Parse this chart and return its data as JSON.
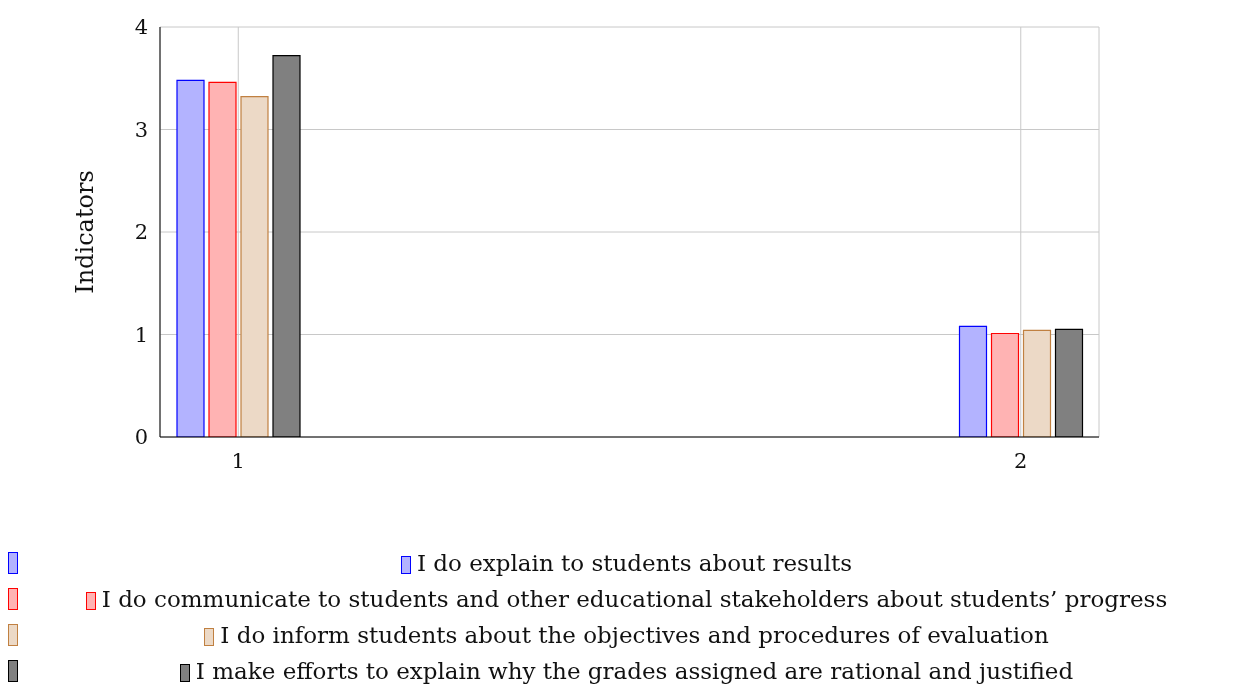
{
  "chart_data": {
    "type": "bar",
    "ylabel": "Indicators",
    "x": [
      1,
      2
    ],
    "xlim": [
      0.9,
      2.1
    ],
    "xticks": [
      1,
      2
    ],
    "ylim": [
      0,
      4
    ],
    "yticks": [
      0,
      1,
      2,
      3,
      4
    ],
    "grid": true,
    "legend": "bottom",
    "series": [
      {
        "name": "I do explain to students about results",
        "color": "#b3b3ff",
        "values": [
          3.48,
          1.08
        ]
      },
      {
        "name": "I do communicate to students and other educational stakeholders about students’ progress",
        "color": "#ffb3b3",
        "values": [
          3.46,
          1.01
        ]
      },
      {
        "name": "I do inform students about the objectives and procedures of evaluation",
        "color": "#ecd9c6",
        "values": [
          3.32,
          1.04
        ]
      },
      {
        "name": "I make efforts to explain why the grades assigned are rational and justified",
        "color": "#808080",
        "values": [
          3.72,
          1.05
        ]
      }
    ]
  }
}
